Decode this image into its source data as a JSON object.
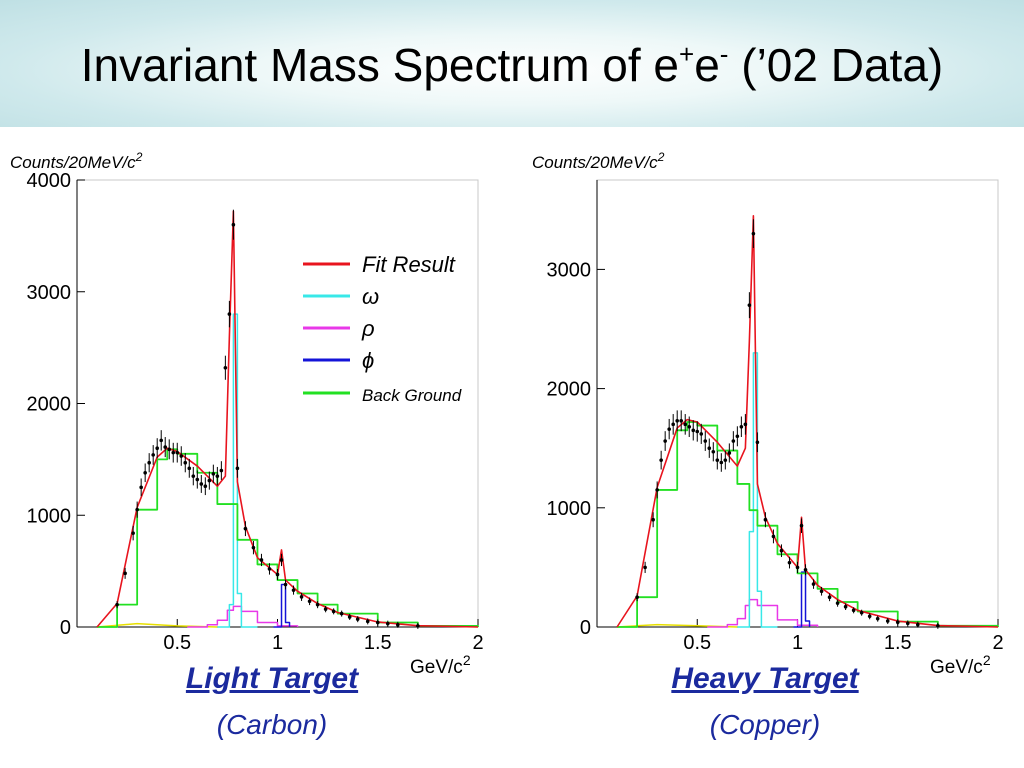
{
  "title": {
    "main": "Invariant Mass Spectrum of e",
    "sup1": "+",
    "mid": "e",
    "sup2": "-",
    "tail": " (’02 Data)"
  },
  "colors": {
    "fit": "#e8141e",
    "omega": "#38e8e8",
    "rho": "#e838e8",
    "phi": "#1414d8",
    "background": "#22e022",
    "data": "#000000",
    "caption": "#1b2a9e",
    "minor": "#e8e000"
  },
  "legend": {
    "fit": "Fit Result",
    "omega": "ω",
    "rho": "ρ",
    "phi": "ϕ",
    "background": "Back Ground"
  },
  "chart_data": [
    {
      "type": "line",
      "ylabel": "Counts/20MeV/c",
      "ylabel_sup": "2",
      "xlabel": "GeV/c",
      "xlabel_sup": "2",
      "caption_main": "Light Target",
      "caption_sub": "(Carbon)",
      "xlim": [
        0,
        2
      ],
      "ylim": [
        0,
        4000
      ],
      "xticks": [
        "0.5",
        "1",
        "1.5",
        "2"
      ],
      "yticks": [
        "0",
        "1000",
        "2000",
        "3000",
        "4000"
      ],
      "series": [
        {
          "key": "background",
          "x": [
            0.1,
            0.2,
            0.3,
            0.4,
            0.45,
            0.5,
            0.6,
            0.7,
            0.8,
            0.9,
            1.0,
            1.1,
            1.2,
            1.3,
            1.5,
            1.7,
            2.0
          ],
          "y": [
            0,
            200,
            1050,
            1500,
            1590,
            1550,
            1380,
            1100,
            780,
            560,
            420,
            300,
            200,
            120,
            40,
            10,
            0
          ]
        },
        {
          "key": "fit",
          "x": [
            0.1,
            0.2,
            0.3,
            0.4,
            0.45,
            0.5,
            0.6,
            0.7,
            0.74,
            0.76,
            0.78,
            0.8,
            0.84,
            0.9,
            1.0,
            1.02,
            1.04,
            1.1,
            1.2,
            1.3,
            1.5,
            1.7,
            2.0
          ],
          "y": [
            0,
            210,
            1070,
            1520,
            1600,
            1570,
            1440,
            1260,
            1350,
            2600,
            3720,
            1300,
            900,
            620,
            470,
            690,
            420,
            320,
            210,
            130,
            45,
            12,
            0
          ]
        },
        {
          "key": "omega",
          "x": [
            0.7,
            0.74,
            0.76,
            0.78,
            0.8,
            0.82,
            0.86,
            0.9
          ],
          "y": [
            0,
            0,
            200,
            2800,
            300,
            0,
            0,
            0
          ]
        },
        {
          "key": "rho",
          "x": [
            0.55,
            0.65,
            0.7,
            0.75,
            0.78,
            0.82,
            0.9,
            1.0,
            1.1
          ],
          "y": [
            0,
            20,
            60,
            150,
            185,
            140,
            40,
            10,
            0
          ]
        },
        {
          "key": "phi",
          "x": [
            0.98,
            1.0,
            1.02,
            1.04,
            1.06
          ],
          "y": [
            0,
            0,
            380,
            40,
            0
          ]
        },
        {
          "key": "minor",
          "x": [
            0.1,
            0.3,
            0.5,
            0.7
          ],
          "y": [
            0,
            30,
            10,
            0
          ]
        }
      ],
      "points": {
        "x": [
          0.2,
          0.24,
          0.28,
          0.3,
          0.32,
          0.34,
          0.36,
          0.38,
          0.4,
          0.42,
          0.44,
          0.46,
          0.48,
          0.5,
          0.52,
          0.54,
          0.56,
          0.58,
          0.6,
          0.62,
          0.64,
          0.66,
          0.68,
          0.7,
          0.72,
          0.74,
          0.76,
          0.78,
          0.8,
          0.84,
          0.88,
          0.92,
          0.96,
          1.0,
          1.02,
          1.04,
          1.08,
          1.12,
          1.16,
          1.2,
          1.24,
          1.28,
          1.32,
          1.36,
          1.4,
          1.45,
          1.5,
          1.55,
          1.6,
          1.7
        ],
        "y": [
          200,
          480,
          840,
          1050,
          1250,
          1380,
          1470,
          1540,
          1600,
          1670,
          1610,
          1590,
          1560,
          1560,
          1530,
          1470,
          1420,
          1350,
          1320,
          1280,
          1260,
          1310,
          1370,
          1350,
          1400,
          2320,
          2800,
          3600,
          1420,
          880,
          710,
          600,
          520,
          470,
          600,
          380,
          330,
          270,
          230,
          200,
          160,
          140,
          120,
          90,
          70,
          50,
          40,
          30,
          20,
          10
        ]
      }
    },
    {
      "type": "line",
      "ylabel": "Counts/20MeV/c",
      "ylabel_sup": "2",
      "xlabel": "GeV/c",
      "xlabel_sup": "2",
      "caption_main": "Heavy Target",
      "caption_sub": "(Copper)",
      "xlim": [
        0,
        2
      ],
      "ylim": [
        0,
        3750
      ],
      "xticks": [
        "0.5",
        "1",
        "1.5",
        "2"
      ],
      "yticks": [
        "0",
        "1000",
        "2000",
        "3000"
      ],
      "series": [
        {
          "key": "background",
          "x": [
            0.1,
            0.2,
            0.3,
            0.4,
            0.45,
            0.5,
            0.6,
            0.7,
            0.76,
            0.8,
            0.9,
            1.0,
            1.1,
            1.2,
            1.3,
            1.5,
            1.7,
            2.0
          ],
          "y": [
            0,
            250,
            1150,
            1650,
            1720,
            1690,
            1480,
            1200,
            980,
            850,
            610,
            450,
            320,
            210,
            130,
            45,
            10,
            0
          ]
        },
        {
          "key": "fit",
          "x": [
            0.1,
            0.2,
            0.3,
            0.4,
            0.45,
            0.5,
            0.6,
            0.7,
            0.74,
            0.76,
            0.78,
            0.8,
            0.84,
            0.9,
            1.0,
            1.02,
            1.04,
            1.1,
            1.2,
            1.3,
            1.5,
            1.7,
            2.0
          ],
          "y": [
            0,
            260,
            1170,
            1670,
            1740,
            1720,
            1550,
            1350,
            1500,
            2400,
            3450,
            1200,
            920,
            700,
            500,
            920,
            480,
            350,
            230,
            140,
            50,
            12,
            0
          ]
        },
        {
          "key": "omega",
          "x": [
            0.7,
            0.74,
            0.76,
            0.78,
            0.8,
            0.82,
            0.86,
            0.9
          ],
          "y": [
            0,
            0,
            800,
            2300,
            300,
            0,
            0,
            0
          ]
        },
        {
          "key": "rho",
          "x": [
            0.55,
            0.65,
            0.7,
            0.74,
            0.76,
            0.8,
            0.9,
            1.0,
            1.1
          ],
          "y": [
            0,
            20,
            70,
            180,
            230,
            180,
            60,
            15,
            0
          ]
        },
        {
          "key": "phi",
          "x": [
            0.98,
            1.0,
            1.02,
            1.04,
            1.06
          ],
          "y": [
            0,
            0,
            460,
            50,
            0
          ]
        },
        {
          "key": "minor",
          "x": [
            0.1,
            0.3,
            0.5,
            0.7
          ],
          "y": [
            0,
            20,
            10,
            0
          ]
        }
      ],
      "points": {
        "x": [
          0.2,
          0.24,
          0.28,
          0.3,
          0.32,
          0.34,
          0.36,
          0.38,
          0.4,
          0.42,
          0.44,
          0.46,
          0.48,
          0.5,
          0.52,
          0.54,
          0.56,
          0.58,
          0.6,
          0.62,
          0.64,
          0.66,
          0.68,
          0.7,
          0.72,
          0.74,
          0.76,
          0.78,
          0.8,
          0.84,
          0.88,
          0.92,
          0.96,
          1.0,
          1.02,
          1.04,
          1.08,
          1.12,
          1.16,
          1.2,
          1.24,
          1.28,
          1.32,
          1.36,
          1.4,
          1.45,
          1.5,
          1.55,
          1.6,
          1.7
        ],
        "y": [
          250,
          500,
          900,
          1150,
          1400,
          1560,
          1660,
          1700,
          1730,
          1730,
          1700,
          1680,
          1650,
          1640,
          1620,
          1560,
          1500,
          1470,
          1400,
          1380,
          1400,
          1460,
          1560,
          1600,
          1680,
          1700,
          2700,
          3300,
          1550,
          900,
          760,
          640,
          540,
          500,
          850,
          480,
          360,
          300,
          250,
          200,
          170,
          140,
          120,
          90,
          70,
          50,
          40,
          30,
          20,
          10
        ]
      }
    }
  ]
}
